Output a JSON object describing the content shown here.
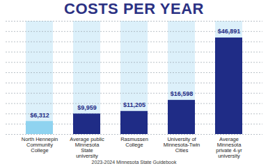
{
  "chart_data": {
    "type": "bar",
    "title": "COSTS PER YEAR",
    "categories": [
      "North Hennepin Community College",
      "Average public Minnesota State university",
      "Rasmussen College",
      "University of Minnesota-Twin Cities",
      "Average Minnesota private 4-yr university"
    ],
    "values": [
      6312,
      9959,
      11205,
      16598,
      46891
    ],
    "value_labels": [
      "$6,312",
      "$9,959",
      "$11,205",
      "$16,598",
      "$46,891"
    ],
    "colors": [
      "#8fd3f0",
      "#1f2c86",
      "#1f2c86",
      "#1f2c86",
      "#1f2c86"
    ],
    "ylim": [
      0,
      55000
    ],
    "yticks": [
      0,
      5000,
      10000,
      15000,
      20000,
      25000,
      30000,
      35000,
      40000,
      45000,
      50000,
      55000
    ],
    "grid": true,
    "data_labels": true,
    "tick_labels": "x",
    "caption": "2023-2024 Minnesota State Guidebook"
  }
}
